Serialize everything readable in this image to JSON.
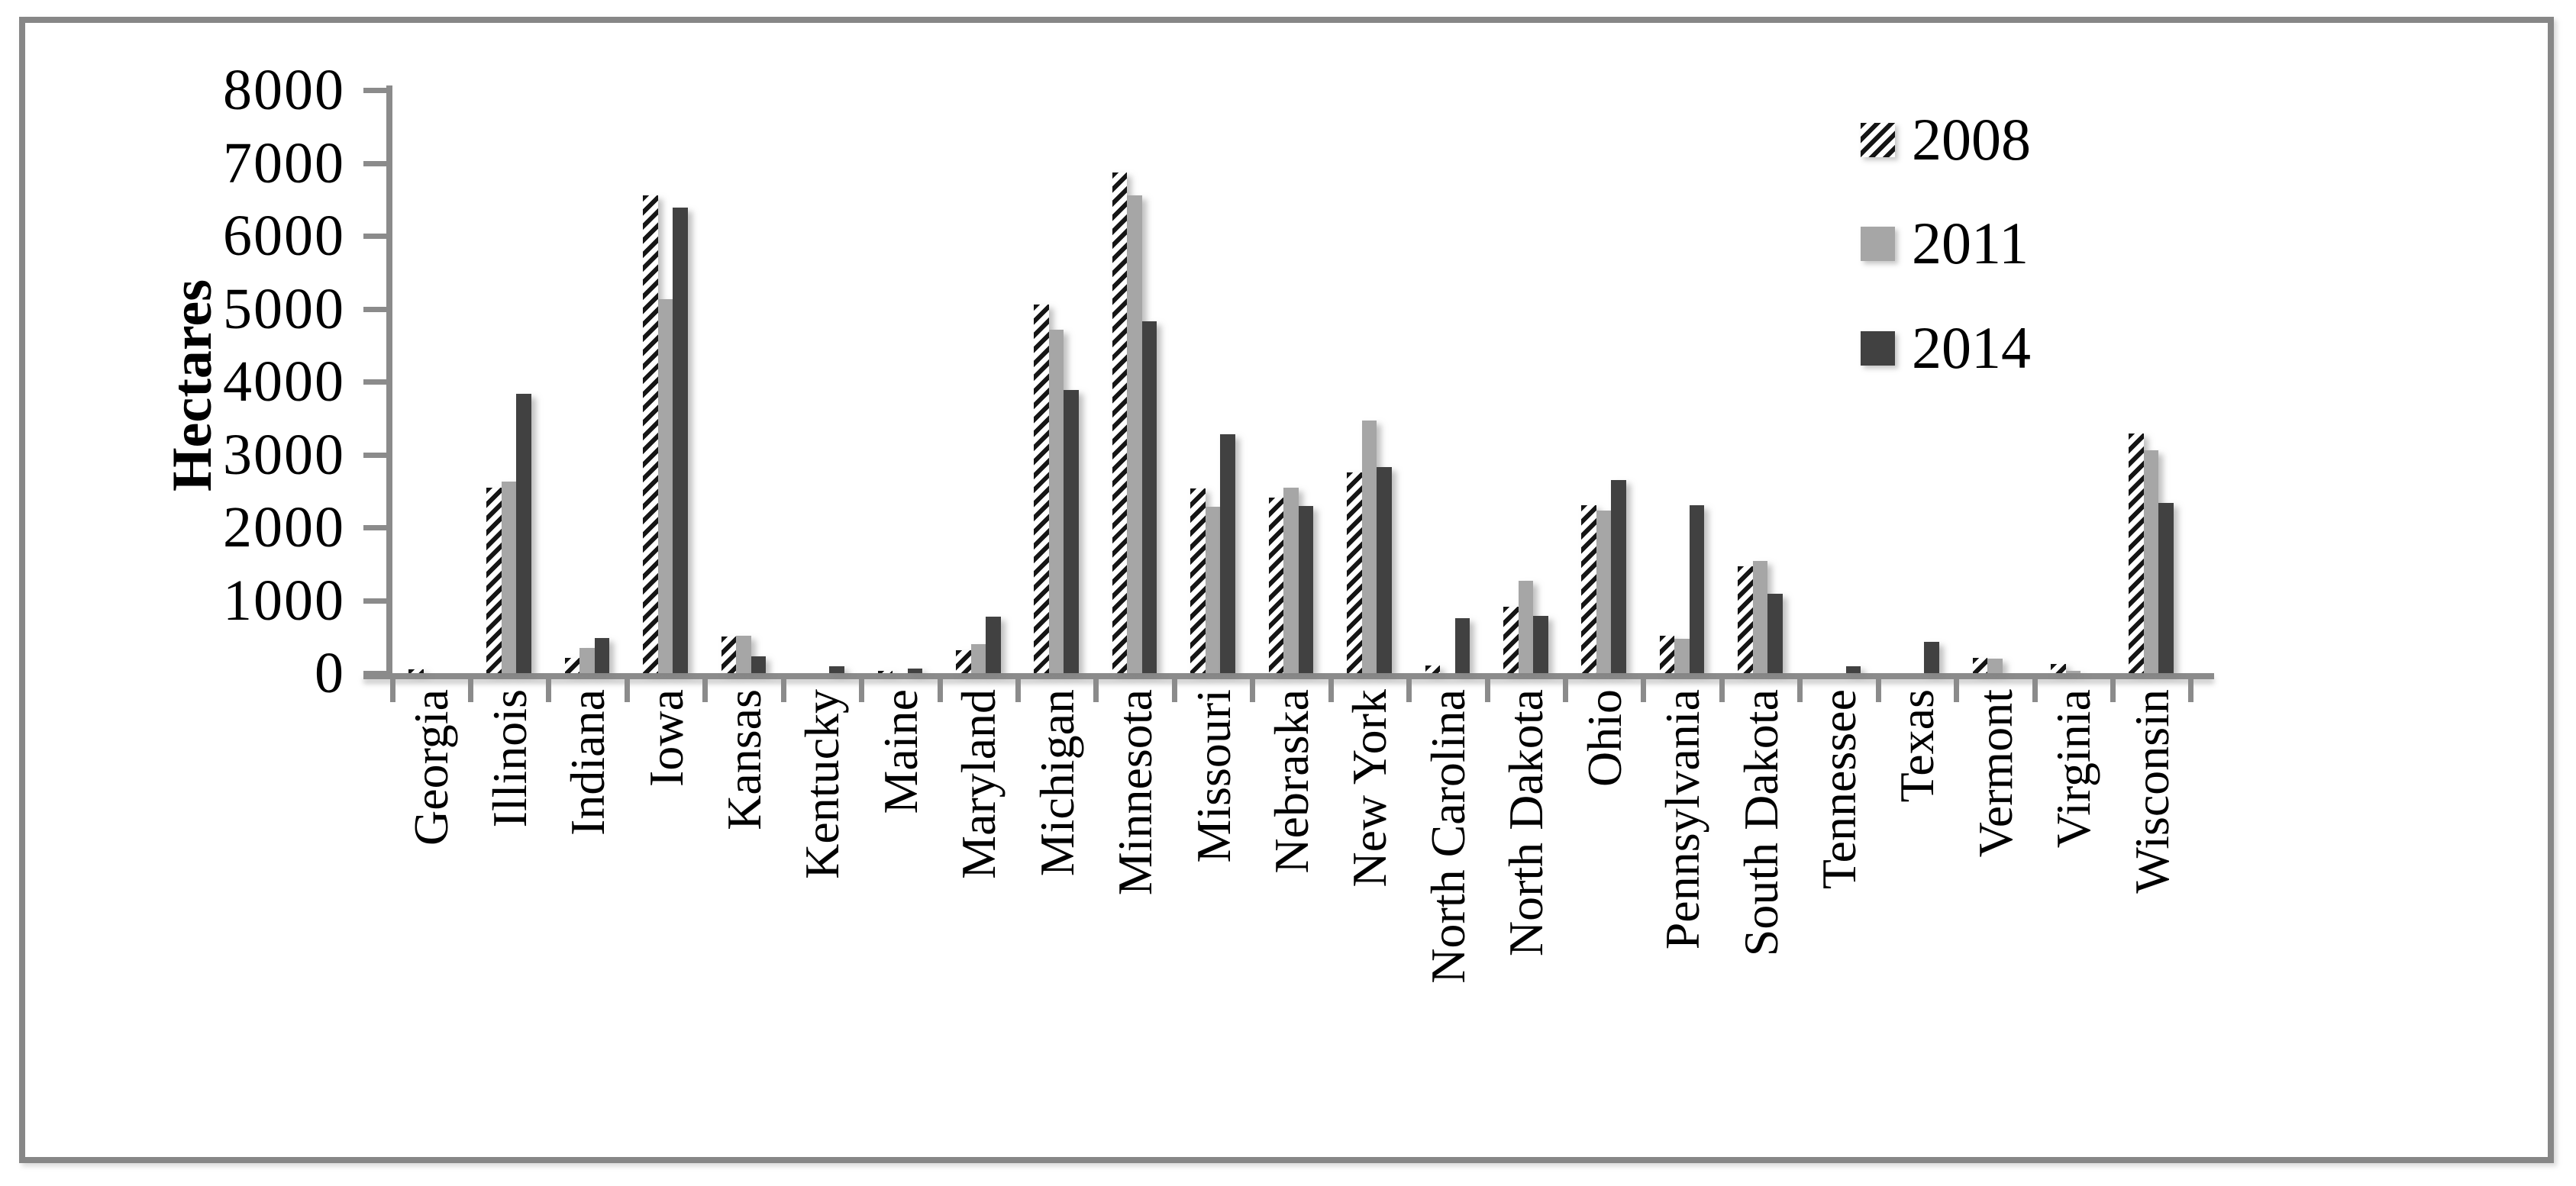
{
  "chart_data": {
    "type": "bar",
    "title": "",
    "xlabel": "",
    "ylabel": "Hectares",
    "ylim": [
      0,
      8000
    ],
    "yticks": [
      0,
      1000,
      2000,
      3000,
      4000,
      5000,
      6000,
      7000,
      8000
    ],
    "grid": false,
    "legend_position": "top-right",
    "categories": [
      "Georgia",
      "Illinois",
      "Indiana",
      "Iowa",
      "Kansas",
      "Kentucky",
      "Maine",
      "Maryland",
      "Michigan",
      "Minnesota",
      "Missouri",
      "Nebraska",
      "New York",
      "North Carolina",
      "North Dakota",
      "Ohio",
      "Pennsylvania",
      "South Dakota",
      "Tennessee",
      "Texas",
      "Vermont",
      "Virginia",
      "Wisconsin"
    ],
    "series": [
      {
        "name": "2008",
        "style": "hatched-black-white-diagonal",
        "values": [
          50,
          2540,
          210,
          6550,
          500,
          0,
          30,
          310,
          5060,
          6870,
          2530,
          2410,
          2750,
          100,
          910,
          2300,
          510,
          1470,
          0,
          0,
          210,
          130,
          3290
        ]
      },
      {
        "name": "2011",
        "style": "light-gray",
        "values": [
          0,
          2630,
          350,
          5130,
          510,
          0,
          0,
          400,
          4710,
          6550,
          2280,
          2540,
          3470,
          0,
          1270,
          2230,
          470,
          1540,
          0,
          0,
          200,
          30,
          3060
        ]
      },
      {
        "name": "2014",
        "style": "dark-gray",
        "values": [
          0,
          3830,
          480,
          6390,
          230,
          90,
          60,
          770,
          3880,
          4830,
          3280,
          2290,
          2830,
          750,
          790,
          2650,
          2300,
          1090,
          90,
          430,
          0,
          0,
          2330
        ]
      }
    ]
  },
  "legend": {
    "items": [
      {
        "label": "2008",
        "swatch": "hatch-swatch"
      },
      {
        "label": "2011",
        "swatch": "gray-swatch"
      },
      {
        "label": "2014",
        "swatch": "dark-swatch"
      }
    ]
  },
  "colors": {
    "series_2008_foreground": "#151515",
    "series_2008_background": "#ffffff",
    "series_2011": "#a6a6a6",
    "series_2014": "#414141",
    "axis": "#8b8b8b",
    "frame_border": "#878787",
    "text": "#000000",
    "background": "#ffffff"
  }
}
